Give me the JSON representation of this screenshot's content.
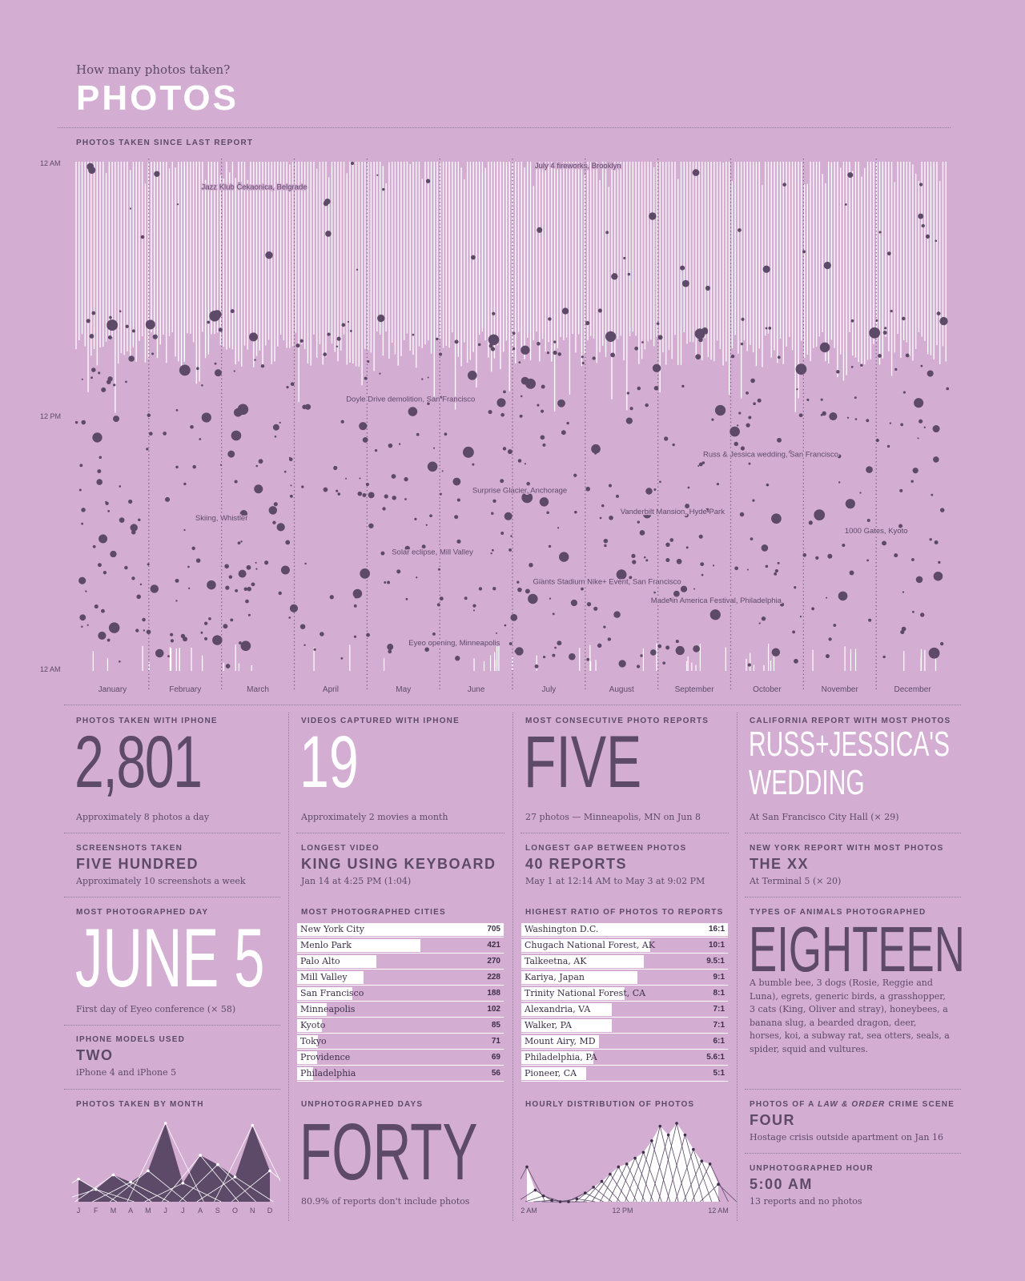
{
  "header": {
    "subtitle": "How many photos taken?",
    "title": "PHOTOS"
  },
  "main_chart": {
    "label": "PHOTOS TAKEN SINCE LAST REPORT",
    "y_ticks": [
      "12 AM",
      "12 PM",
      "12 AM"
    ],
    "months": [
      "January",
      "February",
      "March",
      "April",
      "May",
      "June",
      "July",
      "August",
      "September",
      "October",
      "November",
      "December"
    ],
    "annotations": [
      {
        "text": "July 4 fireworks, Brooklyn",
        "month": 6.9,
        "hour": 0.3
      },
      {
        "text": "Jazz Klub Čekaonica, Belgrade",
        "month": 2.45,
        "hour": 1.3
      },
      {
        "text": "Doyle Drive demolition, San Francisco",
        "month": 4.6,
        "hour": 11.3
      },
      {
        "text": "Russ & Jessica wedding, San Francisco",
        "month": 9.55,
        "hour": 13.9
      },
      {
        "text": "Surprise Glacier, Anchorage",
        "month": 6.1,
        "hour": 15.6
      },
      {
        "text": "Vanderbilt Mansion, Hyde Park",
        "month": 8.2,
        "hour": 16.6
      },
      {
        "text": "Skiing, Whistler",
        "month": 2.0,
        "hour": 16.9
      },
      {
        "text": "1000 Gates, Kyoto",
        "month": 11.0,
        "hour": 17.5
      },
      {
        "text": "Solar eclipse, Mill Valley",
        "month": 4.9,
        "hour": 18.5
      },
      {
        "text": "Giants Stadium Nike+ Event, San Francisco",
        "month": 7.3,
        "hour": 19.9
      },
      {
        "text": "Made in America Festival, Philadelphia",
        "month": 8.8,
        "hour": 20.8
      },
      {
        "text": "Eyeo opening, Minneapolis",
        "month": 5.2,
        "hour": 22.8
      }
    ]
  },
  "stats": {
    "iphone_photos": {
      "label": "PHOTOS TAKEN WITH IPHONE",
      "value": "2,801",
      "note": "Approximately 8 photos a day"
    },
    "videos": {
      "label": "VIDEOS CAPTURED WITH IPHONE",
      "value": "19",
      "note": "Approximately 2 movies a month"
    },
    "consecutive": {
      "label": "MOST CONSECUTIVE PHOTO REPORTS",
      "value": "FIVE",
      "note": "27 photos — Minneapolis, MN on Jun 8"
    },
    "california": {
      "label": "CALIFORNIA REPORT WITH MOST PHOTOS",
      "value1": "RUSS+JESSICA'S",
      "value2": "WEDDING",
      "note": "At San Francisco City Hall (× 29)"
    },
    "screenshots": {
      "label": "SCREENSHOTS TAKEN",
      "value": "FIVE HUNDRED",
      "note": "Approximately 10 screenshots a week"
    },
    "longest_video": {
      "label": "LONGEST VIDEO",
      "value": "KING USING KEYBOARD",
      "note": "Jan 14 at 4:25 PM (1:04)"
    },
    "longest_gap": {
      "label": "LONGEST GAP BETWEEN PHOTOS",
      "value": "40 REPORTS",
      "note": "May 1 at 12:14 AM to May 3 at 9:02 PM"
    },
    "newyork": {
      "label": "NEW YORK REPORT WITH MOST PHOTOS",
      "value": "THE XX",
      "note": "At Terminal 5 (× 20)"
    },
    "day": {
      "label": "MOST PHOTOGRAPHED DAY",
      "value": "JUNE 5",
      "note": "First day of Eyeo conference (× 58)"
    },
    "cities_label": "MOST PHOTOGRAPHED CITIES",
    "ratio_label": "HIGHEST RATIO OF PHOTOS TO REPORTS",
    "animals": {
      "label": "TYPES OF ANIMALS PHOTOGRAPHED",
      "value": "EIGHTEEN",
      "note": "A bumble bee, 3 dogs (Rosie, Reggie and Luna), egrets, generic birds, a grasshopper, 3 cats (King, Oliver and stray), honeybees, a banana slug, a bearded dragon, deer, horses, koi, a subway rat, sea otters, seals, a spider, squid and vultures."
    },
    "models": {
      "label": "IPHONE MODELS USED",
      "value": "TWO",
      "note": "iPhone 4 and iPhone 5"
    },
    "by_month_label": "PHOTOS TAKEN BY MONTH",
    "unphotographed_days": {
      "label": "UNPHOTOGRAPHED DAYS",
      "value": "FORTY",
      "note": "80.9% of reports don't include photos"
    },
    "hourly_label": "HOURLY DISTRIBUTION OF PHOTOS",
    "hourly_ticks": [
      "12 AM",
      "12 PM",
      "12 AM"
    ],
    "law_order": {
      "label_pre": "PHOTOS OF A ",
      "label_em": "LAW & ORDER",
      "label_post": " CRIME SCENE",
      "value": "FOUR",
      "note": "Hostage crisis outside apartment on Jan 16"
    },
    "unphotographed_hour": {
      "label": "UNPHOTOGRAPHED HOUR",
      "value": "5:00 AM",
      "note": "13 reports and no photos"
    }
  },
  "chart_data": [
    {
      "type": "bar",
      "title": "MOST PHOTOGRAPHED CITIES",
      "categories": [
        "New York City",
        "Menlo Park",
        "Palo Alto",
        "Mill Valley",
        "San Francisco",
        "Minneapolis",
        "Kyoto",
        "Tokyo",
        "Providence",
        "Philadelphia"
      ],
      "values": [
        705,
        421,
        270,
        228,
        188,
        102,
        85,
        71,
        69,
        56
      ]
    },
    {
      "type": "bar",
      "title": "HIGHEST RATIO OF PHOTOS TO REPORTS",
      "categories": [
        "Washington D.C.",
        "Chugach National Forest, AK",
        "Talkeetna, AK",
        "Kariya, Japan",
        "Trinity National Forest, CA",
        "Alexandria, VA",
        "Walker, PA",
        "Mount Airy, MD",
        "Philadelphia, PA",
        "Pioneer, CA"
      ],
      "labels": [
        "16:1",
        "10:1",
        "9.5:1",
        "9:1",
        "8:1",
        "7:1",
        "7:1",
        "6:1",
        "5.6:1",
        "5:1"
      ],
      "values": [
        16,
        10,
        9.5,
        9,
        8,
        7,
        7,
        6,
        5.6,
        5
      ]
    },
    {
      "type": "area",
      "title": "PHOTOS TAKEN BY MONTH",
      "categories": [
        "J",
        "F",
        "M",
        "A",
        "M",
        "J",
        "J",
        "A",
        "S",
        "O",
        "N",
        "D"
      ],
      "values": [
        110,
        60,
        130,
        95,
        150,
        380,
        90,
        225,
        180,
        120,
        370,
        150
      ]
    },
    {
      "type": "area",
      "title": "HOURLY DISTRIBUTION OF PHOTOS",
      "x_ticks": [
        "12 AM",
        "12 PM",
        "12 AM"
      ],
      "values": [
        120,
        40,
        20,
        5,
        0,
        0,
        10,
        30,
        50,
        70,
        95,
        120,
        130,
        150,
        170,
        210,
        260,
        230,
        270,
        230,
        180,
        140,
        130,
        60
      ]
    }
  ]
}
